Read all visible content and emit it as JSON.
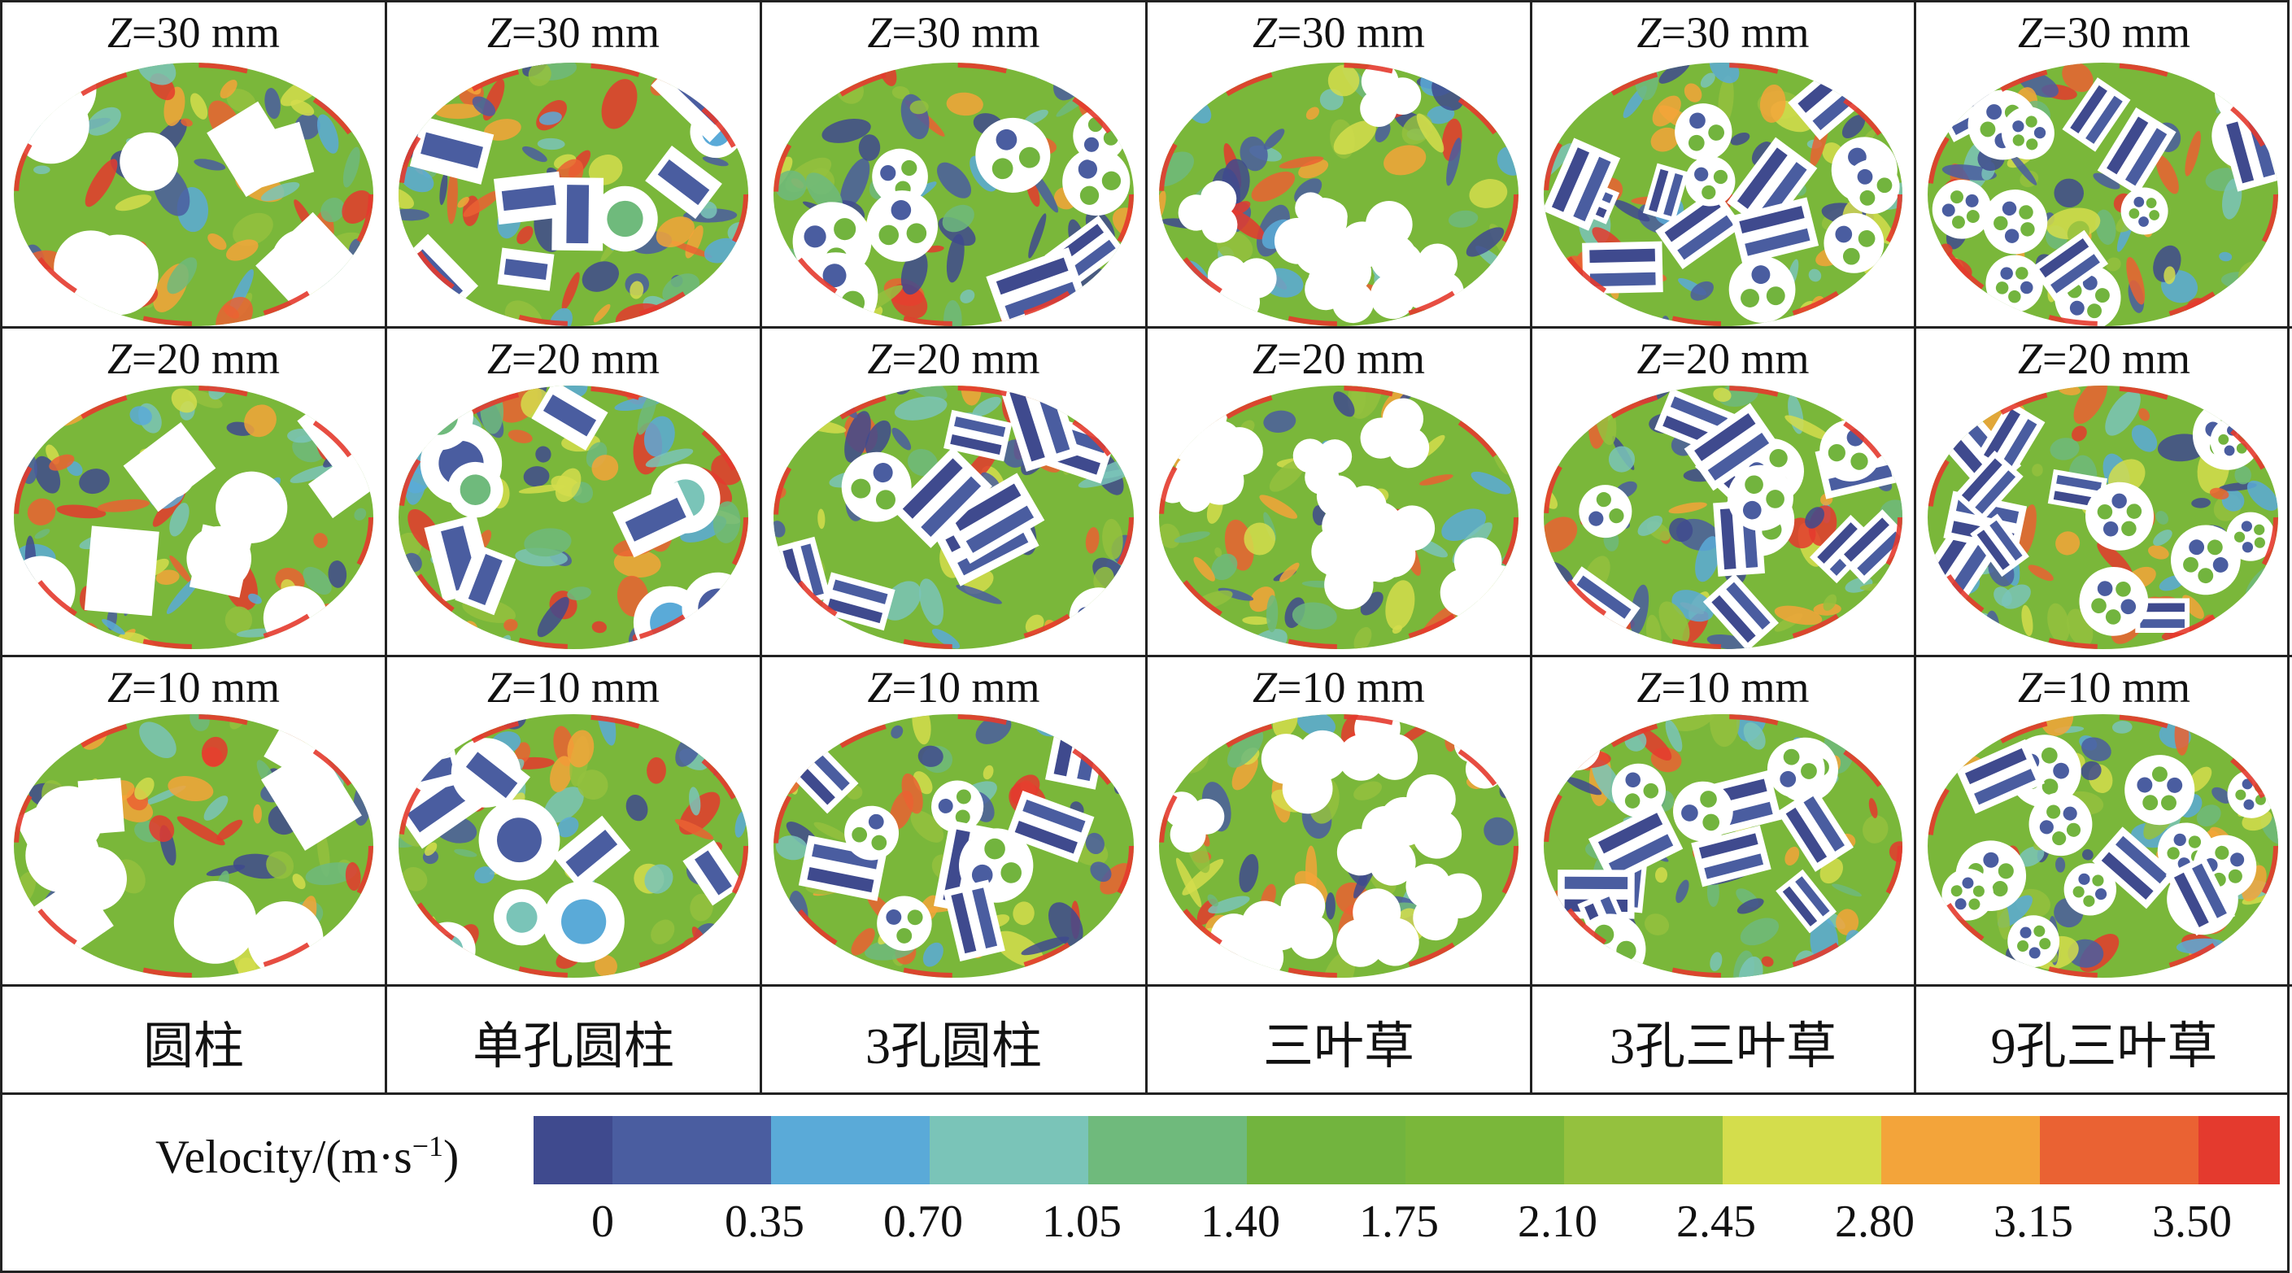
{
  "rows": [
    {
      "title": "Z=30 mm"
    },
    {
      "title": "Z=20 mm"
    },
    {
      "title": "Z=10 mm"
    }
  ],
  "columns": [
    {
      "label": "圆柱",
      "shape": "cylinder"
    },
    {
      "label": "单孔圆柱",
      "shape": "ring"
    },
    {
      "label": "3孔圆柱",
      "shape": "three-hole"
    },
    {
      "label": "三叶草",
      "shape": "trilobe"
    },
    {
      "label": "3孔三叶草",
      "shape": "three-hole-trilobe"
    },
    {
      "label": "9孔三叶草",
      "shape": "nine-hole-trilobe"
    }
  ],
  "legend": {
    "title": "Velocity/(m·s",
    "title_sup": "−1",
    "title_end": ")",
    "ticks": [
      "0",
      "0.35",
      "0.70",
      "1.05",
      "1.40",
      "1.75",
      "2.10",
      "2.45",
      "2.80",
      "3.15",
      "3.50"
    ],
    "colors": [
      "#3f4a8e",
      "#4a5da0",
      "#5aaad8",
      "#7ac4b8",
      "#6fba7c",
      "#72b43e",
      "#7ab73a",
      "#94c13e",
      "#d4dd4c",
      "#f3a43a",
      "#ea6233",
      "#e43a2e"
    ]
  }
}
